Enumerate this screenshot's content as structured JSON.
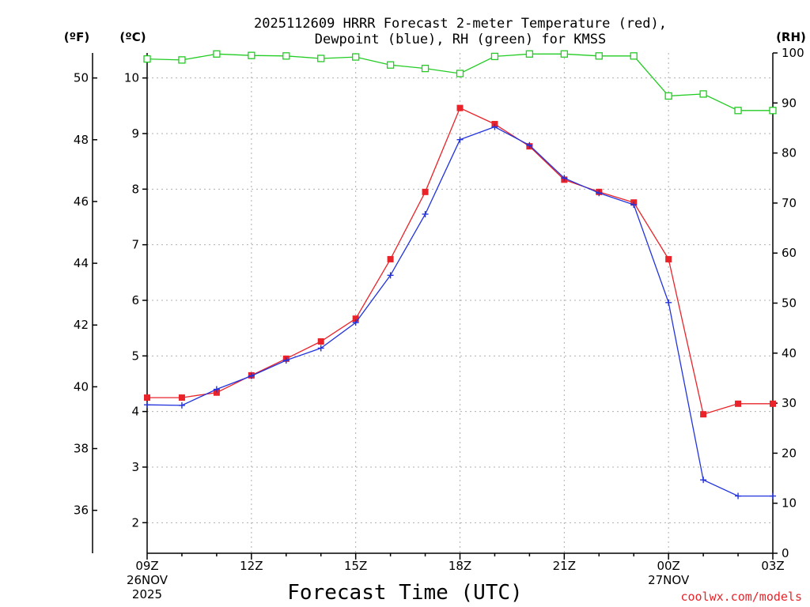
{
  "chart_data": {
    "type": "line",
    "title_line1": "2025112609 HRRR Forecast 2-meter Temperature (red),",
    "title_line2": "Dewpoint (blue), RH (green) for KMSS",
    "xlabel": "Forecast Time (UTC)",
    "credit": "coolwx.com/models",
    "units": {
      "fahrenheit": "(ºF)",
      "celsius": "(ºC)",
      "rh": "(RH)"
    },
    "x_hours": [
      0,
      1,
      2,
      3,
      4,
      5,
      6,
      7,
      8,
      9,
      10,
      11,
      12,
      13,
      14,
      15,
      16,
      17,
      18
    ],
    "x_ticks": [
      {
        "hour": 0,
        "label": "09Z",
        "sub1": "26NOV",
        "sub2": "2025"
      },
      {
        "hour": 3,
        "label": "12Z"
      },
      {
        "hour": 6,
        "label": "15Z"
      },
      {
        "hour": 9,
        "label": "18Z"
      },
      {
        "hour": 12,
        "label": "21Z"
      },
      {
        "hour": 15,
        "label": "00Z",
        "sub1": "27NOV"
      },
      {
        "hour": 18,
        "label": "03Z"
      }
    ],
    "y_celsius": {
      "range": [
        1.45,
        10.45
      ],
      "ticks": [
        "2",
        "3",
        "4",
        "5",
        "6",
        "7",
        "8",
        "9",
        "10"
      ]
    },
    "y_fahrenheit": {
      "ticks": [
        "36",
        "38",
        "40",
        "42",
        "44",
        "46",
        "48",
        "50"
      ]
    },
    "y_rh": {
      "range": [
        0,
        100
      ],
      "ticks": [
        "0",
        "10",
        "20",
        "30",
        "40",
        "50",
        "60",
        "70",
        "80",
        "90",
        "100"
      ]
    },
    "series": [
      {
        "name": "Temperature",
        "units": "C",
        "color": "#e8242a",
        "marker": "filled-square",
        "values": [
          4.25,
          4.25,
          4.34,
          4.65,
          4.95,
          5.26,
          5.67,
          6.74,
          7.95,
          9.46,
          9.17,
          8.77,
          8.17,
          7.95,
          7.76,
          6.74,
          3.95,
          4.14,
          4.14
        ]
      },
      {
        "name": "Dewpoint",
        "units": "C",
        "color": "#2233dd",
        "marker": "plus",
        "values": [
          4.12,
          4.11,
          4.4,
          4.64,
          4.92,
          5.14,
          5.6,
          6.45,
          7.55,
          8.89,
          9.12,
          8.79,
          8.2,
          7.93,
          7.72,
          5.96,
          2.77,
          2.48,
          2.48
        ]
      },
      {
        "name": "RH",
        "units": "%",
        "color": "#22cc22",
        "marker": "open-square",
        "values": [
          98.8,
          98.6,
          99.8,
          99.5,
          99.4,
          98.9,
          99.2,
          97.6,
          96.9,
          95.9,
          99.3,
          99.8,
          99.8,
          99.4,
          99.4,
          91.4,
          91.8,
          88.5,
          88.5
        ]
      }
    ]
  }
}
